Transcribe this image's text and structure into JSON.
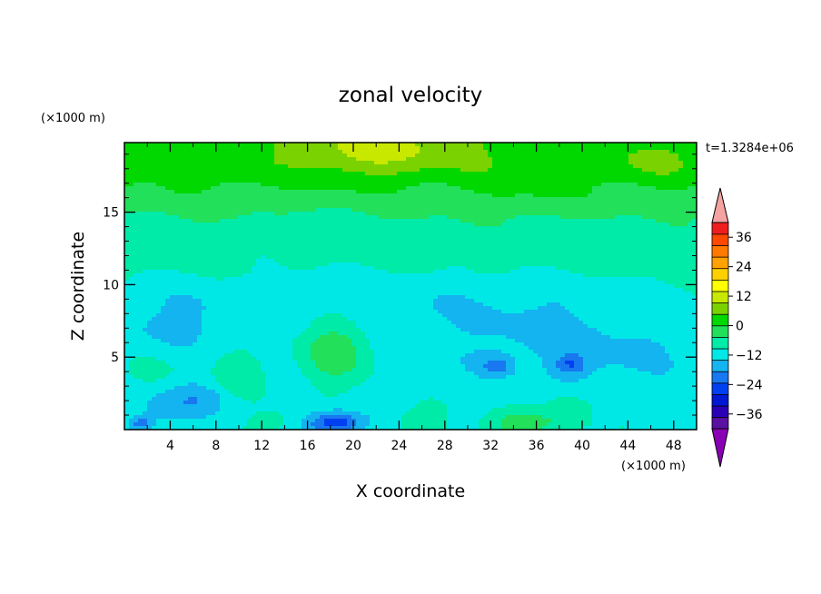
{
  "chart_data": {
    "type": "heatmap",
    "title": "zonal velocity",
    "xlabel": "X coordinate",
    "ylabel": "Z coordinate",
    "x_unit": "(×1000 m)",
    "y_unit": "(×1000 m)",
    "time_label": "t=1.3284e+06",
    "xlim": [
      0,
      50
    ],
    "ylim": [
      0,
      19.8
    ],
    "x_ticks": [
      4,
      8,
      12,
      16,
      20,
      24,
      28,
      32,
      36,
      40,
      44,
      48
    ],
    "y_ticks": [
      5,
      10,
      15
    ],
    "colorbar": {
      "min": -42,
      "max": 42,
      "step": 6,
      "tick_values": [
        36,
        24,
        12,
        0,
        -12,
        -24,
        -36
      ],
      "tick_labels": [
        "36",
        "24",
        "12",
        "0",
        "−12",
        "−24",
        "−36"
      ],
      "colors": [
        "#5a10a0",
        "#2a00b4",
        "#0018d2",
        "#0040f0",
        "#1878f0",
        "#14b4f0",
        "#00e8e6",
        "#00eaa8",
        "#22e05a",
        "#00d800",
        "#7ad200",
        "#c8e800",
        "#ffff00",
        "#ffd000",
        "#ffa200",
        "#ff7800",
        "#ff4800",
        "#ee1e1e"
      ],
      "over_color": "#f4a2a2",
      "under_color": "#8a00b4"
    },
    "features": [
      {
        "x": 22,
        "z": 19.3,
        "sx": 8,
        "sz": 2.0,
        "v": 13
      },
      {
        "x": 46,
        "z": 18.3,
        "sx": 4.5,
        "sz": 1.6,
        "v": 6
      },
      {
        "x": 35,
        "z": 17.5,
        "sx": 5,
        "sz": 2.5,
        "v": 4
      },
      {
        "x": 6,
        "z": 18,
        "sx": 6,
        "sz": 2,
        "v": 3
      },
      {
        "x": 16,
        "z": 13.5,
        "sx": 4,
        "sz": 1.2,
        "v": -4
      },
      {
        "x": 5,
        "z": 8,
        "sx": 5,
        "sz": 2.5,
        "v": -5
      },
      {
        "x": 20,
        "z": 9.5,
        "sx": 12,
        "sz": 2,
        "v": -4
      },
      {
        "x": 38,
        "z": 9,
        "sx": 12,
        "sz": 1.8,
        "v": -4
      },
      {
        "x": 18.5,
        "z": 5.5,
        "sx": 3,
        "sz": 2.2,
        "v": 13
      },
      {
        "x": 3,
        "z": 4,
        "sx": 2.5,
        "sz": 1.5,
        "v": 4
      },
      {
        "x": 10,
        "z": 3.5,
        "sx": 2.5,
        "sz": 2,
        "v": 8
      },
      {
        "x": 32.5,
        "z": 4.4,
        "sx": 1.2,
        "sz": 0.6,
        "v": -12
      },
      {
        "x": 39,
        "z": 4.5,
        "sx": 1.3,
        "sz": 0.7,
        "v": -12
      },
      {
        "x": 34,
        "z": 5.5,
        "sx": 6,
        "sz": 2.5,
        "v": -4
      },
      {
        "x": 41,
        "z": 5,
        "sx": 4,
        "sz": 2.5,
        "v": -4
      },
      {
        "x": 7,
        "z": 2.2,
        "sx": 4,
        "sz": 1.3,
        "v": -9
      },
      {
        "x": 3,
        "z": 1.2,
        "sx": 3,
        "sz": 1.2,
        "v": -5
      },
      {
        "x": 18.5,
        "z": 0.5,
        "sx": 2.5,
        "sz": 0.8,
        "v": -22
      },
      {
        "x": 34.5,
        "z": 0.4,
        "sx": 3,
        "sz": 0.8,
        "v": 11
      },
      {
        "x": 39,
        "z": 1.5,
        "sx": 2,
        "sz": 1,
        "v": 8
      },
      {
        "x": 26,
        "z": 1,
        "sx": 3,
        "sz": 1,
        "v": 3
      },
      {
        "x": 13,
        "z": 0.5,
        "sx": 2,
        "sz": 0.8,
        "v": 4
      },
      {
        "x": 1.5,
        "z": 0.4,
        "sx": 1,
        "sz": 0.5,
        "v": -14
      },
      {
        "x": 46,
        "z": 5,
        "sx": 3,
        "sz": 2,
        "v": -3
      }
    ],
    "base_profile": [
      {
        "z": 0,
        "v": -1
      },
      {
        "z": 3,
        "v": -2
      },
      {
        "z": 7,
        "v": -3
      },
      {
        "z": 9.5,
        "v": 0
      },
      {
        "z": 11,
        "v": 2
      },
      {
        "z": 12.5,
        "v": 3
      },
      {
        "z": 14,
        "v": 4
      },
      {
        "z": 15.5,
        "v": 8
      },
      {
        "z": 17,
        "v": 11
      },
      {
        "z": 18.5,
        "v": 13
      },
      {
        "z": 19.8,
        "v": 14
      }
    ]
  }
}
